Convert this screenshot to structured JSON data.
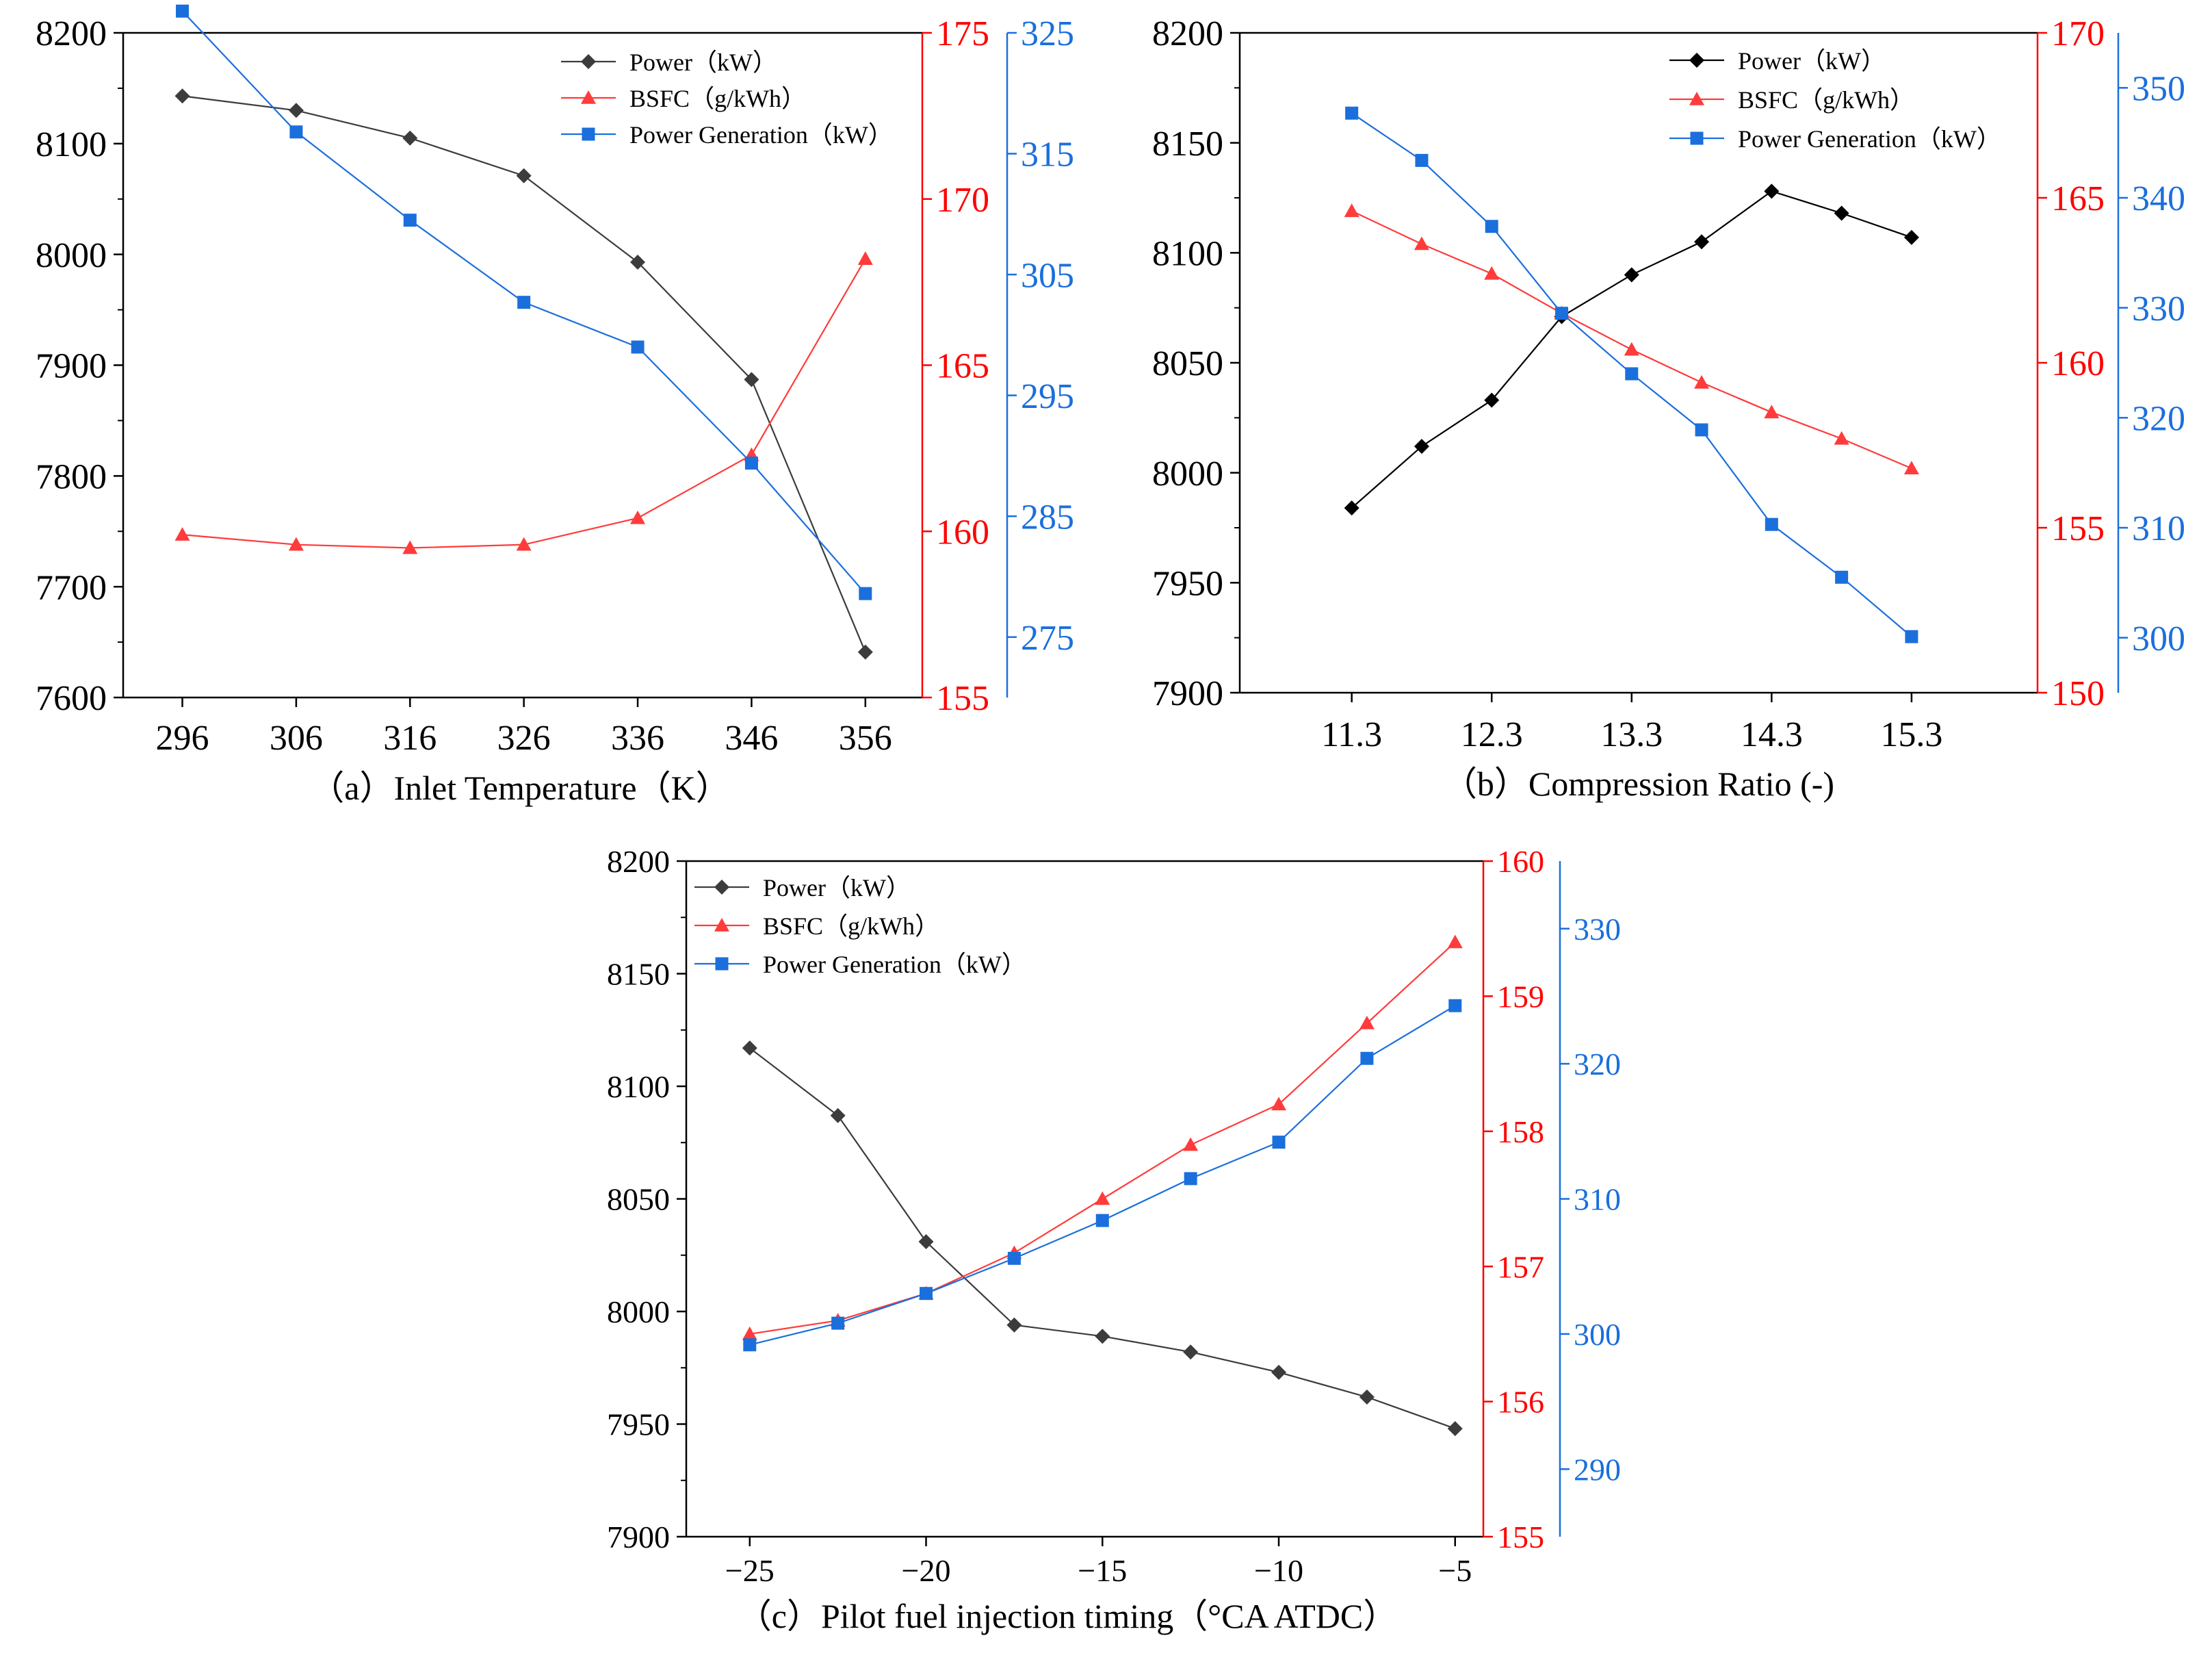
{
  "colors": {
    "power": "#3c3c3c",
    "power_b": "#000000",
    "bsfc": "#ff3b3b",
    "gen": "#1a6fdc",
    "axis": "#000000",
    "bsfc_axis": "#ff0000",
    "gen_axis": "#1a6fdc"
  },
  "chart_data": [
    {
      "type": "line",
      "caption": "（a）Inlet Temperature（K）",
      "x": [
        296,
        306,
        316,
        326,
        336,
        346,
        356
      ],
      "x_ticks": [
        "296",
        "306",
        "316",
        "326",
        "336",
        "346",
        "356"
      ],
      "xlim": [
        290.8,
        361
      ],
      "legend": [
        "Power（kW）",
        "BSFC（g/kWh）",
        "Power Generation（kW）"
      ],
      "legend_position": "top-right",
      "series": [
        {
          "name": "Power（kW）",
          "axis": "left",
          "marker": "diamond",
          "values": [
            8143,
            8130,
            8105,
            8071,
            7993,
            7887,
            7641
          ]
        },
        {
          "name": "BSFC（g/kWh）",
          "axis": "right1",
          "marker": "triangle",
          "values": [
            159.9,
            159.6,
            159.5,
            159.6,
            160.4,
            162.3,
            168.2
          ]
        },
        {
          "name": "Power Generation（kW）",
          "axis": "right2",
          "marker": "square",
          "values": [
            326.8,
            316.8,
            309.5,
            302.7,
            299.0,
            289.4,
            278.6
          ]
        }
      ],
      "left_axis": {
        "range": [
          7600,
          8200
        ],
        "ticks": [
          "7600",
          "7700",
          "7800",
          "7900",
          "8000",
          "8100",
          "8200"
        ]
      },
      "right1_axis": {
        "range": [
          155,
          175
        ],
        "ticks": [
          "155",
          "160",
          "165",
          "170",
          "175"
        ]
      },
      "right2_axis": {
        "range": [
          270,
          325
        ],
        "ticks": [
          "275",
          "285",
          "295",
          "305",
          "315",
          "325"
        ]
      }
    },
    {
      "type": "line",
      "caption": "（b）Compression Ratio (-)",
      "x": [
        11.3,
        11.8,
        12.3,
        12.8,
        13.3,
        13.8,
        14.3,
        14.8,
        15.3
      ],
      "x_ticks": [
        "11.3",
        "12.3",
        "13.3",
        "14.3",
        "15.3"
      ],
      "xlim": [
        10.5,
        16.2
      ],
      "legend": [
        "Power（kW）",
        "BSFC（g/kWh）",
        "Power Generation（kW）"
      ],
      "legend_position": "top-right",
      "series": [
        {
          "name": "Power（kW）",
          "axis": "left",
          "marker": "diamond",
          "values": [
            7984,
            8012,
            8033,
            8071,
            8090,
            8105,
            8128,
            8118,
            8107
          ]
        },
        {
          "name": "BSFC（g/kWh）",
          "axis": "right1",
          "marker": "triangle",
          "values": [
            164.6,
            163.6,
            162.7,
            161.5,
            160.4,
            159.4,
            158.5,
            157.7,
            156.8
          ]
        },
        {
          "name": "Power Generation（kW）",
          "axis": "right2",
          "marker": "square",
          "values": [
            347.7,
            343.4,
            337.4,
            329.5,
            324.0,
            318.9,
            310.3,
            305.5,
            300.1
          ]
        }
      ],
      "left_axis": {
        "range": [
          7900,
          8200
        ],
        "ticks": [
          "7900",
          "7950",
          "8000",
          "8050",
          "8100",
          "8150",
          "8200"
        ]
      },
      "right1_axis": {
        "range": [
          150,
          170
        ],
        "ticks": [
          "150",
          "155",
          "160",
          "165",
          "170"
        ]
      },
      "right2_axis": {
        "range": [
          295,
          355
        ],
        "ticks": [
          "300",
          "310",
          "320",
          "330",
          "340",
          "350"
        ]
      }
    },
    {
      "type": "line",
      "caption": "（c）Pilot fuel injection timing（°CA ATDC）",
      "x": [
        -25,
        -22.5,
        -20,
        -17.5,
        -15,
        -12.5,
        -10,
        -7.5,
        -5
      ],
      "x_ticks": [
        "−25",
        "−20",
        "−15",
        "−10",
        "−5"
      ],
      "xlim": [
        -26.8,
        -4.2
      ],
      "legend": [
        "Power（kW）",
        "BSFC（g/kWh）",
        "Power Generation（kW）"
      ],
      "legend_position": "top-left",
      "series": [
        {
          "name": "Power（kW）",
          "axis": "left",
          "marker": "diamond",
          "values": [
            8117,
            8087,
            8031,
            7994,
            7989,
            7982,
            7973,
            7962,
            7948
          ]
        },
        {
          "name": "BSFC（g/kWh）",
          "axis": "right1",
          "marker": "triangle",
          "values": [
            156.5,
            156.6,
            156.8,
            157.1,
            157.5,
            157.9,
            158.2,
            158.8,
            159.4
          ]
        },
        {
          "name": "Power Generation（kW）",
          "axis": "right2",
          "marker": "square",
          "values": [
            299.2,
            300.8,
            303.0,
            305.6,
            308.4,
            311.5,
            314.2,
            320.4,
            324.3
          ]
        }
      ],
      "left_axis": {
        "range": [
          7900,
          8200
        ],
        "ticks": [
          "7900",
          "7950",
          "8000",
          "8050",
          "8100",
          "8150",
          "8200"
        ]
      },
      "right1_axis": {
        "range": [
          155,
          160
        ],
        "ticks": [
          "155",
          "156",
          "157",
          "158",
          "159",
          "160"
        ]
      },
      "right2_axis": {
        "range": [
          285,
          335
        ],
        "ticks": [
          "290",
          "300",
          "310",
          "320",
          "330"
        ]
      }
    }
  ]
}
